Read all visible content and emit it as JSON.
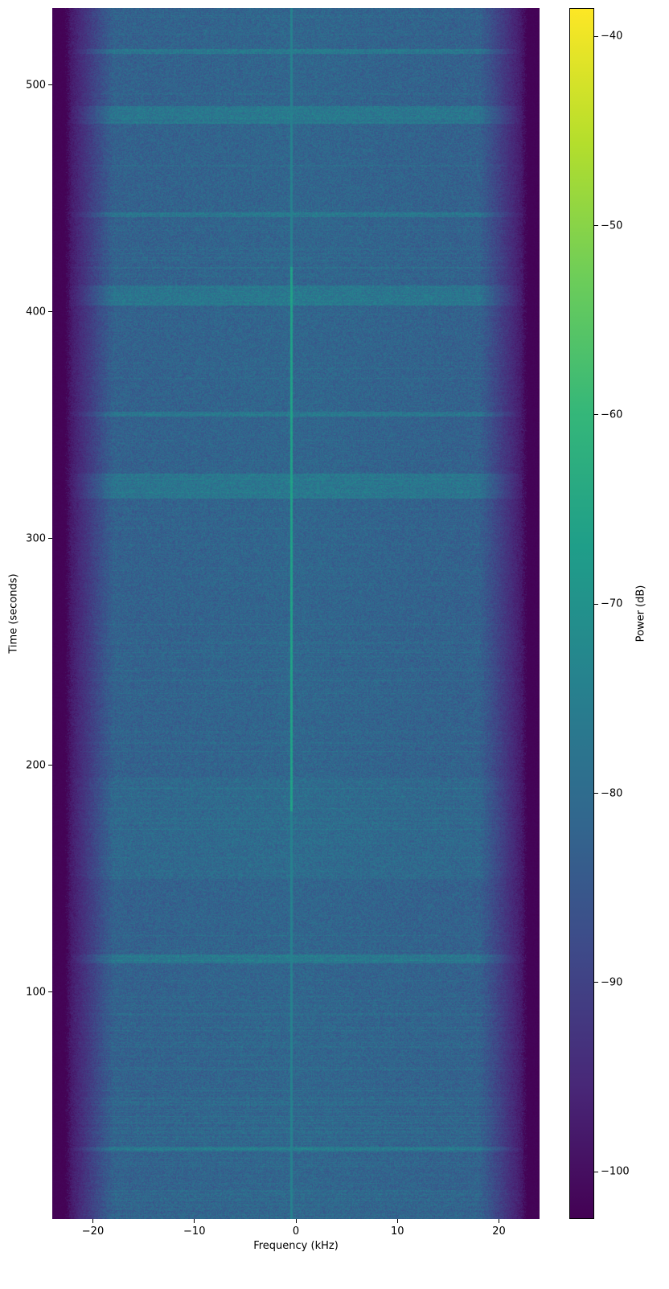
{
  "chart_data": {
    "type": "heatmap",
    "title": "",
    "xlabel": "Frequency (kHz)",
    "ylabel": "Time (seconds)",
    "colorbar_label": "Power (dB)",
    "colormap": "viridis",
    "xlim": [
      -24,
      24
    ],
    "ylim": [
      0,
      534
    ],
    "clim": [
      -102.5,
      -38.5
    ],
    "xticks": [
      -20,
      -10,
      0,
      10,
      20
    ],
    "xtick_labels": [
      "−20",
      "−10",
      "0",
      "10",
      "20"
    ],
    "yticks": [
      100,
      200,
      300,
      400,
      500
    ],
    "ytick_labels": [
      "100",
      "200",
      "300",
      "400",
      "500"
    ],
    "cticks": [
      -100,
      -90,
      -80,
      -70,
      -60,
      -50,
      -40
    ],
    "ctick_labels": [
      "−100",
      "−90",
      "−80",
      "−70",
      "−60",
      "−50",
      "−40"
    ],
    "features": {
      "background_level_db": -83,
      "passband_edge_khz": [
        -22.5,
        22.5
      ],
      "out_of_band_level_db": -102,
      "carrier_frequency_khz": -0.5,
      "carrier_strong_time_range_s": [
        180,
        420
      ],
      "bright_time_bands_s": [
        [
          113,
          117
        ],
        [
          318,
          329
        ],
        [
          354,
          356
        ],
        [
          403,
          412
        ],
        [
          442,
          444
        ],
        [
          483,
          491
        ],
        [
          514,
          516
        ],
        [
          30,
          32
        ]
      ]
    }
  }
}
